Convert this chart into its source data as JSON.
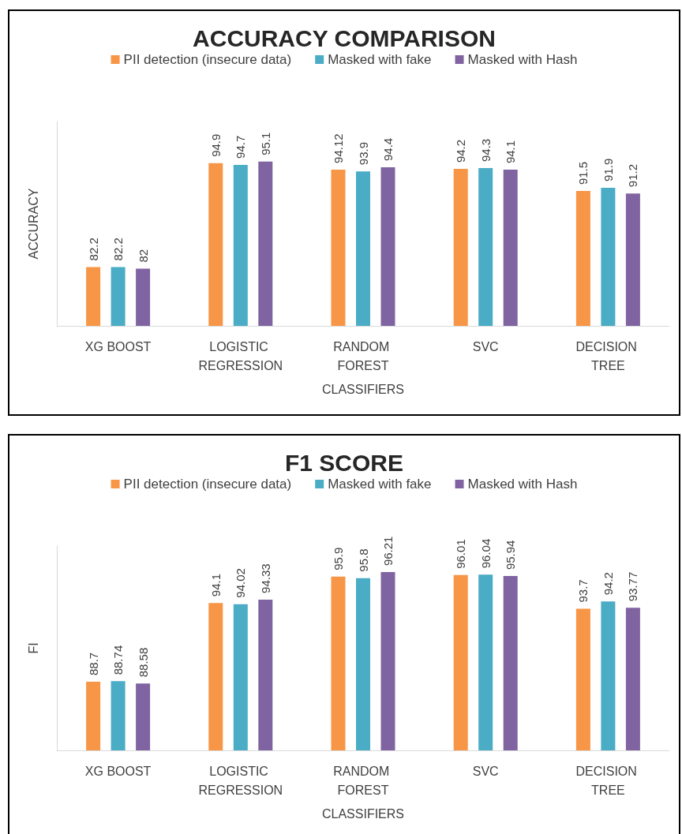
{
  "chart_data": [
    {
      "type": "bar",
      "title": "ACCURACY COMPARISON",
      "xlabel": "CLASSIFIERS",
      "ylabel": "ACCURACY",
      "categories": [
        "XG BOOST",
        "LOGISTIC REGRESSION",
        "RANDOM FOREST",
        "SVC",
        "DECISION TREE"
      ],
      "series": [
        {
          "name": "PII detection (insecure data)",
          "color": "#f79646",
          "values": [
            82.2,
            94.9,
            94.12,
            94.2,
            91.5
          ]
        },
        {
          "name": "Masked with fake",
          "color": "#4bacc6",
          "values": [
            82.2,
            94.7,
            93.9,
            94.3,
            91.9
          ]
        },
        {
          "name": "Masked with Hash",
          "color": "#8064a2",
          "values": [
            82,
            95.1,
            94.4,
            94.1,
            91.2
          ]
        }
      ],
      "ylim": [
        75,
        100
      ],
      "tick_labels": "x",
      "data_labels": true,
      "legend": "top",
      "grid": false
    },
    {
      "type": "bar",
      "title": "F1 SCORE",
      "xlabel": "CLASSIFIERS",
      "ylabel": "FI",
      "categories": [
        "XG BOOST",
        "LOGISTIC REGRESSION",
        "RANDOM FOREST",
        "SVC",
        "DECISION TREE"
      ],
      "series": [
        {
          "name": "PII detection (insecure data)",
          "color": "#f79646",
          "values": [
            88.7,
            94.1,
            95.9,
            96.01,
            93.7
          ]
        },
        {
          "name": "Masked with fake",
          "color": "#4bacc6",
          "values": [
            88.74,
            94.02,
            95.8,
            96.04,
            94.2
          ]
        },
        {
          "name": "Masked with Hash",
          "color": "#8064a2",
          "values": [
            88.58,
            94.33,
            96.21,
            95.94,
            93.77
          ]
        }
      ],
      "ylim": [
        84,
        98
      ],
      "tick_labels": "x",
      "data_labels": true,
      "legend": "top",
      "grid": false
    }
  ]
}
